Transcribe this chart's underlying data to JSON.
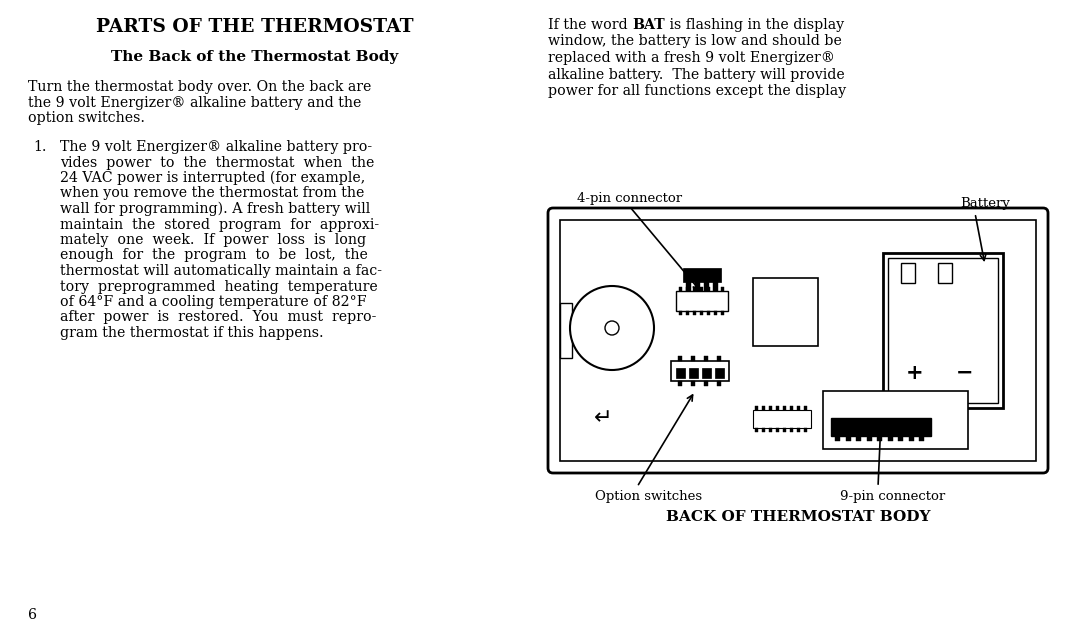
{
  "bg_color": "#ffffff",
  "title": "PARTS OF THE THERMOSTAT",
  "subtitle": "The Back of the Thermostat Body",
  "page_number": "6",
  "label_4pin": "4-pin connector",
  "label_battery": "Battery",
  "label_option": "Option switches",
  "label_9pin": "9-pin connector",
  "diagram_caption": "BACK OF THERMOSTAT BODY",
  "right_para_line1_pre": "If the word ",
  "right_para_line1_bold": "BAT",
  "right_para_line1_post": " is flashing in the display",
  "right_para_line2": "window, the battery is low and should be",
  "right_para_line3": "replaced with a fresh 9 volt Energizer®",
  "right_para_line4": "alkaline battery.  The battery will provide",
  "right_para_line5": "power for all functions except the display",
  "left_para1_l1": "Turn the thermostat body over. On the back are",
  "left_para1_l2": "the 9 volt Energizer® alkaline battery and the",
  "left_para1_l3": "option switches.",
  "list_num": "1.",
  "list_lines": [
    "The 9 volt Energizer® alkaline battery pro-",
    "vides  power  to  the  thermostat  when  the",
    "24 VAC power is interrupted (for example,",
    "when you remove the thermostat from the",
    "wall for programming). A fresh battery will",
    "maintain  the  stored  program  for  approxi-",
    "mately  one  week.  If  power  loss  is  long",
    "enough  for  the  program  to  be  lost,  the",
    "thermostat will automatically maintain a fac-",
    "tory  preprogrammed  heating  temperature",
    "of 64°F and a cooling temperature of 82°F",
    "after  power  is  restored.  You  must  repro-",
    "gram the thermostat if this happens."
  ]
}
